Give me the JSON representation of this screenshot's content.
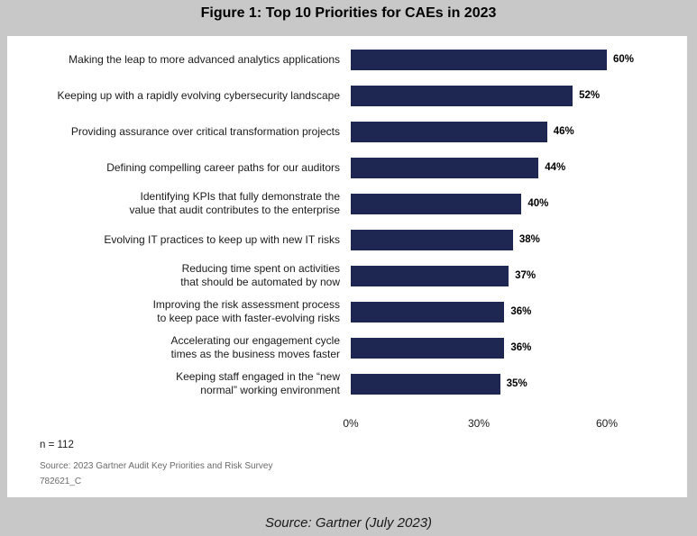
{
  "figure_title": "Figure 1: Top 10 Priorities for CAEs in 2023",
  "chart_data": {
    "type": "bar",
    "orientation": "horizontal",
    "categories": [
      [
        "Making the leap to more advanced analytics applications"
      ],
      [
        "Keeping up with a rapidly evolving cybersecurity landscape"
      ],
      [
        "Providing assurance over critical transformation projects"
      ],
      [
        "Defining compelling career paths for our auditors"
      ],
      [
        "Identifying KPIs that fully demonstrate the",
        "value that audit contributes to the enterprise"
      ],
      [
        "Evolving IT practices to keep up with new IT risks"
      ],
      [
        "Reducing time spent on activities",
        "that should be automated by now"
      ],
      [
        "Improving the risk assessment process",
        "to keep pace with faster-evolving risks"
      ],
      [
        "Accelerating our engagement cycle",
        "times as the business moves faster"
      ],
      [
        "Keeping staff engaged in the “new",
        "normal” working environment"
      ]
    ],
    "values": [
      60,
      52,
      46,
      44,
      40,
      38,
      37,
      36,
      36,
      35
    ],
    "value_labels": [
      "60%",
      "52%",
      "46%",
      "44%",
      "40%",
      "38%",
      "37%",
      "36%",
      "36%",
      "35%"
    ],
    "xlim": [
      0,
      60
    ],
    "xticks": [
      0,
      30,
      60
    ],
    "xtick_labels": [
      "0%",
      "30%",
      "60%"
    ],
    "bar_color": "#1d2751",
    "grid": false,
    "legend": "none"
  },
  "sample_size": "n = 112",
  "source_note": "Source: 2023 Gartner Audit Key Priorities and Risk Survey",
  "doc_code": "782621_C",
  "caption": "Source: Gartner (July 2023)"
}
